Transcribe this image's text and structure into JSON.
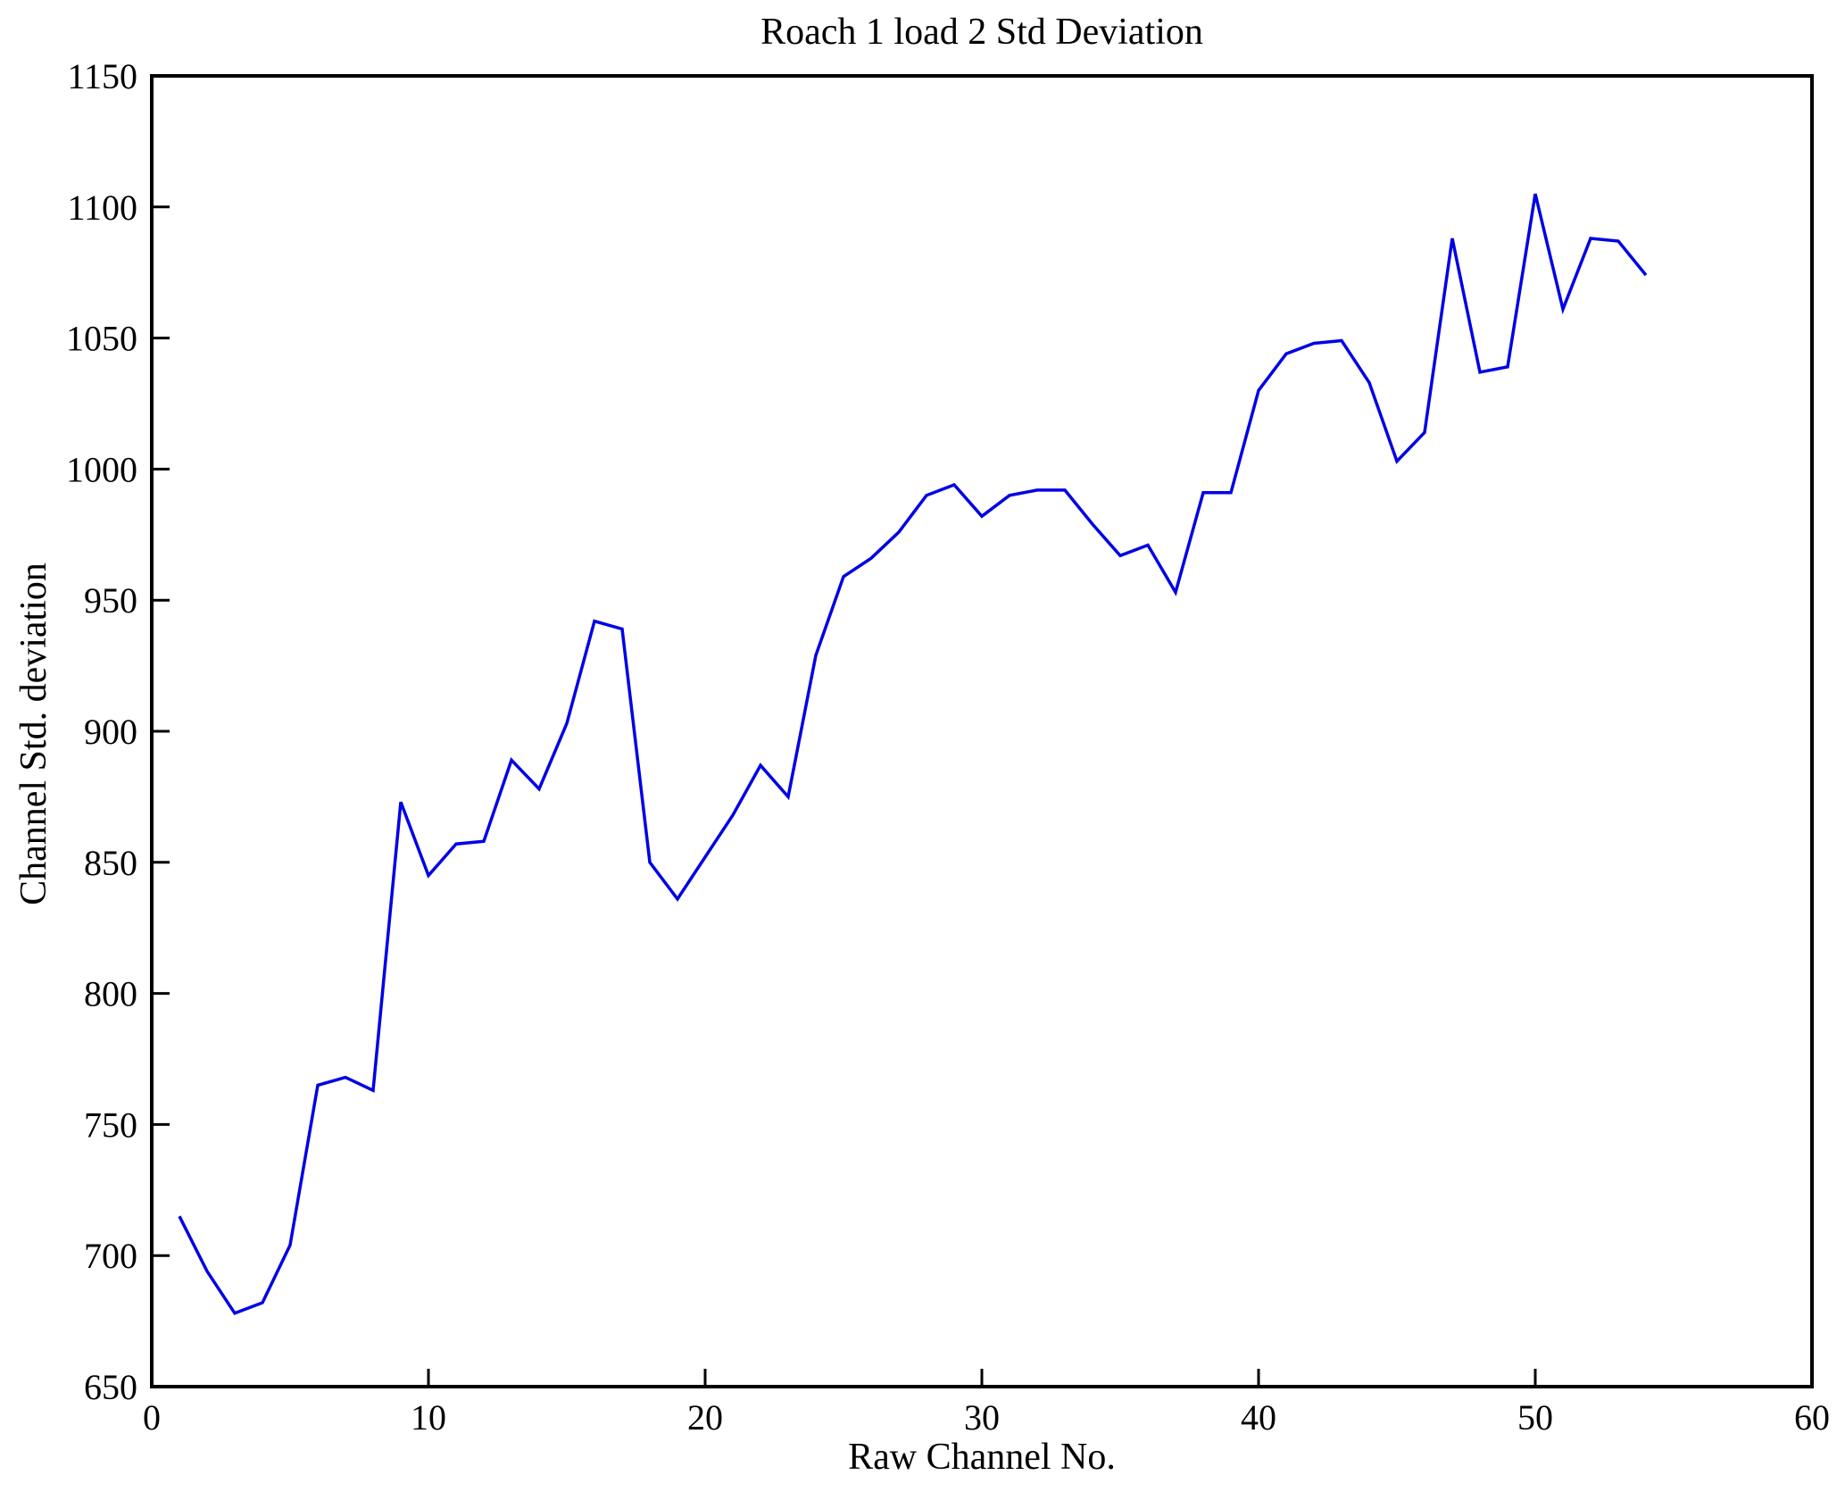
{
  "figure": {
    "title": "Roach 1 load 2 Std Deviation",
    "xlabel": "Raw Channel No.",
    "ylabel": "Channel Std. deviation"
  },
  "chart_data": {
    "type": "line",
    "title": "Roach 1 load 2 Std Deviation",
    "xlabel": "Raw Channel No.",
    "ylabel": "Channel Std. deviation",
    "xlim": [
      0,
      60
    ],
    "ylim": [
      650,
      1150
    ],
    "xticks": [
      0,
      10,
      20,
      30,
      40,
      50,
      60
    ],
    "yticks": [
      650,
      700,
      750,
      800,
      850,
      900,
      950,
      1000,
      1050,
      1100,
      1150
    ],
    "grid": false,
    "legend": null,
    "line_color": "#0000e6",
    "axis_color": "#000000",
    "background_color": "#ffffff",
    "series": [
      {
        "name": "Channel Std. deviation",
        "x": [
          1,
          2,
          3,
          4,
          5,
          6,
          7,
          8,
          9,
          10,
          11,
          12,
          13,
          14,
          15,
          16,
          17,
          18,
          19,
          20,
          21,
          22,
          23,
          24,
          25,
          26,
          27,
          28,
          29,
          30,
          31,
          32,
          33,
          34,
          35,
          36,
          37,
          38,
          39,
          40,
          41,
          42,
          43,
          44,
          45,
          46,
          47,
          48,
          49,
          50,
          51,
          52,
          53,
          54
        ],
        "values": [
          715,
          694,
          678,
          682,
          704,
          765,
          768,
          763,
          873,
          845,
          857,
          858,
          889,
          878,
          903,
          942,
          939,
          850,
          836,
          852,
          868,
          887,
          875,
          929,
          959,
          966,
          976,
          990,
          994,
          982,
          990,
          992,
          992,
          979,
          967,
          971,
          953,
          991,
          991,
          1030,
          1044,
          1048,
          1049,
          1033,
          1003,
          1014,
          1088,
          1037,
          1039,
          1105,
          1061,
          1088,
          1087,
          1074
        ]
      }
    ]
  }
}
